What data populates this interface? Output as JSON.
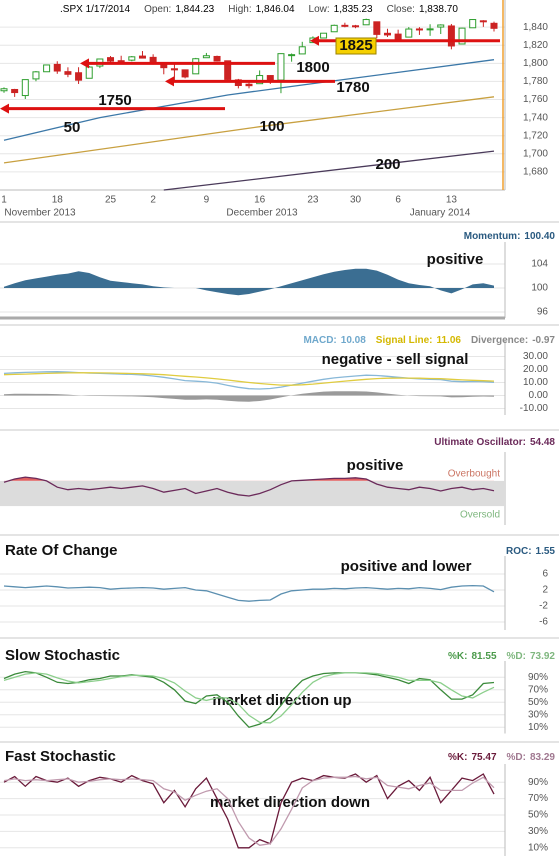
{
  "chart_data": [
    {
      "type": "candlestick",
      "title": ".SPX 1/17/2014",
      "readouts": [
        {
          "label": "Open:",
          "value": "1,844.23"
        },
        {
          "label": "High:",
          "value": "1,846.04"
        },
        {
          "label": "Low:",
          "value": "1,835.23"
        },
        {
          "label": "Close:",
          "value": "1,838.70"
        }
      ],
      "categories": [
        "1",
        null,
        null,
        null,
        null,
        "18",
        null,
        null,
        null,
        null,
        "25",
        null,
        null,
        null,
        "2",
        null,
        null,
        null,
        null,
        "9",
        null,
        null,
        null,
        null,
        "16",
        null,
        null,
        null,
        null,
        "23",
        null,
        null,
        null,
        "30",
        null,
        null,
        null,
        "6",
        null,
        null,
        null,
        null,
        "13",
        null,
        null,
        null,
        null
      ],
      "months": [
        "November 2013",
        "December 2013",
        "January 2014"
      ],
      "open": [
        1769.7,
        1771.1,
        1764.4,
        1782.8,
        1790.7,
        1798.8,
        1790.8,
        1789.6,
        1783.5,
        1797.0,
        1806.3,
        1802.9,
        1803.5,
        1808.0,
        1806.6,
        1800.1,
        1794.0,
        1792.8,
        1788.4,
        1806.2,
        1807.6,
        1802.8,
        1781.7,
        1776.9,
        1777.5,
        1786.5,
        1781.5,
        1809.0,
        1810.4,
        1822.9,
        1828.0,
        1834.9,
        1842.0,
        1841.5,
        1842.6,
        1845.9,
        1833.2,
        1832.3,
        1829.0,
        1838.0,
        1837.9,
        1840.1,
        1841.3,
        1821.4,
        1839.3,
        1847.0,
        1844.23
      ],
      "high": [
        1773.4,
        1771.8,
        1782.0,
        1791.5,
        1798.2,
        1802.3,
        1795.6,
        1795.7,
        1797.2,
        1804.8,
        1808.1,
        1808.4,
        1808.1,
        1813.6,
        1810.0,
        1800.1,
        1799.8,
        1792.8,
        1806.0,
        1811.5,
        1808.5,
        1803.0,
        1782.8,
        1781.3,
        1792.2,
        1786.8,
        1811.1,
        1810.9,
        1823.8,
        1829.8,
        1833.3,
        1842.8,
        1844.9,
        1842.5,
        1849.4,
        1845.9,
        1838.2,
        1837.2,
        1840.1,
        1840.0,
        1843.2,
        1843.2,
        1843.5,
        1839.3,
        1848.8,
        1847.7,
        1846.04
      ],
      "low": [
        1767.5,
        1762.9,
        1760.6,
        1780.2,
        1790.7,
        1788.4,
        1784.7,
        1777.2,
        1783.5,
        1794.7,
        1800.6,
        1800.8,
        1802.3,
        1805.8,
        1798.6,
        1787.9,
        1779.1,
        1783.4,
        1788.4,
        1806.2,
        1801.9,
        1780.1,
        1772.3,
        1772.3,
        1777.5,
        1777.2,
        1767.0,
        1801.8,
        1810.4,
        1822.9,
        1828.0,
        1834.9,
        1839.8,
        1838.8,
        1842.4,
        1827.7,
        1829.1,
        1823.7,
        1829.0,
        1831.4,
        1830.4,
        1832.4,
        1815.5,
        1821.4,
        1839.3,
        1840.3,
        1835.23
      ],
      "close": [
        1771.9,
        1767.7,
        1782.0,
        1790.6,
        1798.2,
        1791.5,
        1787.9,
        1781.4,
        1795.9,
        1804.8,
        1802.5,
        1802.8,
        1807.2,
        1805.8,
        1800.9,
        1795.2,
        1792.8,
        1785.0,
        1805.1,
        1808.4,
        1802.6,
        1782.2,
        1775.5,
        1775.3,
        1786.5,
        1781.0,
        1810.7,
        1809.6,
        1818.3,
        1828.0,
        1833.3,
        1842.0,
        1841.4,
        1841.1,
        1848.4,
        1832.0,
        1831.4,
        1826.8,
        1837.9,
        1837.5,
        1838.1,
        1842.4,
        1819.2,
        1838.9,
        1848.4,
        1845.9,
        1838.7
      ],
      "up_color": "#2e9e2e",
      "down_color": "#cc2222",
      "moving_averages": [
        {
          "name": "50",
          "color": "#3c78a8",
          "x": [
            0,
            9,
            21,
            28,
            46
          ],
          "values": [
            1715,
            1740,
            1765,
            1776,
            1804
          ]
        },
        {
          "name": "100",
          "color": "#c8a040",
          "x": [
            0,
            24,
            46
          ],
          "values": [
            1690,
            1730,
            1763
          ]
        },
        {
          "name": "200",
          "color": "#4a3a5a",
          "x": [
            15,
            46
          ],
          "values": [
            1660,
            1703
          ]
        }
      ],
      "levels": [
        1825,
        1800,
        1780,
        1750
      ],
      "level_color": "#dd1111",
      "ylim": [
        1660,
        1870
      ],
      "yticks": [
        {
          "value": 1680,
          "label": "1,680"
        },
        {
          "value": 1700,
          "label": "1,700"
        },
        {
          "value": 1720,
          "label": "1,720"
        },
        {
          "value": 1740,
          "label": "1,740"
        },
        {
          "value": 1760,
          "label": "1,760"
        },
        {
          "value": 1780,
          "label": "1,780"
        },
        {
          "value": 1800,
          "label": "1,800"
        },
        {
          "value": 1820,
          "label": "1,820"
        },
        {
          "value": 1840,
          "label": "1,840"
        }
      ],
      "grid": true
    },
    {
      "type": "area",
      "readouts": [
        {
          "label": "Momentum:",
          "value": "100.40",
          "color": "#2a5a80"
        }
      ],
      "annotation": "positive",
      "baseline": 100,
      "ylim": [
        95,
        106
      ],
      "yticks": [
        104,
        100,
        96
      ],
      "grid": true,
      "series": [
        {
          "color": "#3b6e92",
          "values": [
            100.2,
            100.8,
            101.3,
            101.6,
            101.9,
            102.2,
            102.4,
            102.8,
            102.5,
            101.8,
            101.2,
            101.0,
            100.8,
            100.6,
            100.3,
            100.1,
            100.0,
            100.0,
            100.0,
            99.6,
            99.3,
            99.0,
            98.8,
            99.0,
            99.4,
            99.8,
            100.3,
            100.8,
            101.3,
            101.8,
            102.3,
            102.7,
            103.0,
            103.2,
            103.2,
            102.9,
            102.2,
            101.4,
            100.8,
            100.5,
            100.3,
            99.6,
            99.1,
            99.8,
            100.6,
            100.8,
            100.4
          ]
        }
      ]
    },
    {
      "type": "line",
      "readouts": [
        {
          "label": "MACD:",
          "value": "10.08",
          "color": "#6fa8cc"
        },
        {
          "label": "Signal Line:",
          "value": "11.06",
          "color": "#d4b800"
        },
        {
          "label": "Divergence:",
          "value": "-0.97",
          "color": "#888888"
        }
      ],
      "annotation": "negative - sell signal",
      "baseline": 0,
      "ylim": [
        -15,
        35
      ],
      "yticks": [
        {
          "value": 30,
          "label": "30.00"
        },
        {
          "value": 20,
          "label": "20.00"
        },
        {
          "value": 10,
          "label": "10.00"
        },
        {
          "value": 0,
          "label": "0.00"
        },
        {
          "value": -10,
          "label": "-10.00"
        }
      ],
      "grid": true,
      "series": [
        {
          "color": "#9a9a9a",
          "style": "area",
          "values": [
            1,
            1.3,
            1.3,
            1.2,
            1.2,
            1.1,
            0.7,
            0.1,
            -0.3,
            -0.4,
            -0.5,
            -0.6,
            -0.7,
            -0.9,
            -1.4,
            -2,
            -2.6,
            -3.3,
            -3.2,
            -3,
            -3.3,
            -4.1,
            -4.6,
            -4.8,
            -4.2,
            -3.1,
            -1.5,
            0.1,
            1.3,
            2.2,
            3,
            3.2,
            3.2,
            3.2,
            3.1,
            2.4,
            1.5,
            0.6,
            -0.1,
            -0.5,
            -0.6,
            -0.7,
            -1.5,
            -1.4,
            -0.9,
            -0.8,
            -0.97
          ]
        },
        {
          "color": "#88b8d8",
          "values": [
            17,
            17.5,
            17.8,
            18,
            18.2,
            18.3,
            18.1,
            17.6,
            17.2,
            17,
            16.8,
            16.5,
            16.2,
            15.8,
            15,
            14,
            12.8,
            11.5,
            11,
            10.5,
            9.5,
            7.8,
            6.3,
            5.2,
            5,
            5.4,
            6.5,
            8,
            9.5,
            11,
            12.5,
            13.5,
            14.3,
            15,
            15.6,
            15.4,
            14.8,
            14,
            13.3,
            12.8,
            12.5,
            12.2,
            11,
            10.6,
            10.8,
            10.6,
            10.08
          ]
        },
        {
          "color": "#e0cc40",
          "values": [
            16,
            16.2,
            16.5,
            16.8,
            17,
            17.2,
            17.4,
            17.5,
            17.5,
            17.4,
            17.3,
            17.1,
            16.9,
            16.7,
            16.4,
            16,
            15.4,
            14.8,
            14.2,
            13.5,
            12.8,
            11.9,
            10.9,
            10,
            9.2,
            8.5,
            8,
            7.9,
            8.2,
            8.8,
            9.5,
            10.3,
            11.1,
            11.8,
            12.5,
            13,
            13.3,
            13.4,
            13.4,
            13.3,
            13.1,
            12.9,
            12.5,
            12,
            11.7,
            11.4,
            11.06
          ]
        }
      ]
    },
    {
      "type": "line",
      "readouts": [
        {
          "label": "Ultimate Oscillator:",
          "value": "54.48",
          "color": "#6b2a5a"
        }
      ],
      "annotation": "positive",
      "ylim": [
        0,
        100
      ],
      "band": {
        "low": 30,
        "high": 70,
        "low_label": "Oversold",
        "high_label": "Overbought",
        "color": "#dcdcdc",
        "high_fill": "#e06060",
        "low_label_color": "#7fb77f",
        "high_label_color": "#cc7766"
      },
      "series": [
        {
          "color": "#6b2a5a",
          "values": [
            68,
            73,
            76,
            74,
            70,
            60,
            56,
            58,
            56,
            58,
            60,
            58,
            60,
            62,
            58,
            52,
            55,
            58,
            50,
            54,
            58,
            52,
            48,
            46,
            50,
            56,
            64,
            70,
            71,
            72,
            73,
            74,
            74,
            75,
            73,
            65,
            60,
            58,
            56,
            60,
            58,
            54,
            58,
            60,
            56,
            58,
            54.48
          ]
        }
      ]
    },
    {
      "type": "line",
      "title": "Rate Of Change",
      "readouts": [
        {
          "label": "ROC:",
          "value": "1.55",
          "color": "#2a5a80"
        }
      ],
      "annotation": "positive and lower",
      "ylim": [
        -8,
        8
      ],
      "yticks": [
        6,
        2,
        -2,
        -6
      ],
      "grid": true,
      "series": [
        {
          "color": "#5b8fb0",
          "values": [
            3,
            2.8,
            2.6,
            2.8,
            3,
            2.8,
            2.5,
            2.6,
            2.7,
            2.6,
            2.2,
            2.4,
            2.5,
            2.6,
            2.5,
            2.2,
            2.4,
            2.6,
            2,
            1.8,
            1,
            0.2,
            -0.6,
            -0.8,
            -0.6,
            -0.5,
            1,
            1.8,
            2,
            2.2,
            2.2,
            2.4,
            2.3,
            2.5,
            2.6,
            2.4,
            2.2,
            2.4,
            2.3,
            2.6,
            2.4,
            2.1,
            2.7,
            3,
            3.1,
            3,
            1.55
          ]
        }
      ]
    },
    {
      "type": "line",
      "title": "Slow Stochastic",
      "readouts": [
        {
          "label": "%K:",
          "value": "81.55",
          "color": "#4a9a4a"
        },
        {
          "label": "%D:",
          "value": "73.92",
          "color": "#7fb77f"
        }
      ],
      "annotation": "market direction up",
      "ylim": [
        0,
        100
      ],
      "yticks": [
        {
          "value": 90,
          "label": "90%"
        },
        {
          "value": 70,
          "label": "70%"
        },
        {
          "value": 50,
          "label": "50%"
        },
        {
          "value": 30,
          "label": "30%"
        },
        {
          "value": 10,
          "label": "10%"
        }
      ],
      "grid": true,
      "series": [
        {
          "color": "#3a8a3a",
          "values": [
            88,
            95,
            99,
            97,
            90,
            82,
            80,
            82,
            86,
            88,
            92,
            92,
            94,
            92,
            90,
            82,
            70,
            52,
            48,
            60,
            62,
            50,
            28,
            10,
            15,
            25,
            45,
            68,
            85,
            92,
            96,
            97,
            97,
            97,
            96,
            94,
            90,
            86,
            80,
            88,
            86,
            70,
            55,
            55,
            62,
            80,
            81.55
          ]
        },
        {
          "color": "#8ccf8c",
          "values": [
            85,
            90,
            95,
            97,
            95,
            89,
            84,
            81,
            83,
            85,
            88,
            91,
            93,
            93,
            92,
            88,
            81,
            68,
            57,
            53,
            57,
            57,
            47,
            29,
            18,
            17,
            28,
            46,
            66,
            82,
            91,
            95,
            97,
            97,
            97,
            96,
            93,
            90,
            85,
            85,
            85,
            81,
            70,
            60,
            57,
            66,
            73.92
          ]
        }
      ]
    },
    {
      "type": "line",
      "title": "Fast Stochastic",
      "readouts": [
        {
          "label": "%K:",
          "value": "75.47",
          "color": "#6a1a3a"
        },
        {
          "label": "%D:",
          "value": "83.29",
          "color": "#a07890"
        }
      ],
      "annotation": "market direction down",
      "ylim": [
        0,
        100
      ],
      "yticks": [
        {
          "value": 90,
          "label": "90%"
        },
        {
          "value": 70,
          "label": "70%"
        },
        {
          "value": 50,
          "label": "50%"
        },
        {
          "value": 30,
          "label": "30%"
        },
        {
          "value": 10,
          "label": "10%"
        }
      ],
      "grid": true,
      "series": [
        {
          "color": "#6a1a3a",
          "values": [
            90,
            97,
            85,
            97,
            92,
            90,
            95,
            85,
            92,
            96,
            94,
            90,
            98,
            92,
            88,
            65,
            80,
            60,
            82,
            95,
            70,
            45,
            10,
            10,
            20,
            15,
            65,
            90,
            95,
            92,
            98,
            96,
            95,
            100,
            90,
            98,
            70,
            85,
            92,
            80,
            96,
            65,
            80,
            95,
            92,
            100,
            75.47
          ]
        },
        {
          "color": "#c09aae",
          "values": [
            92,
            94,
            92,
            93,
            92,
            93,
            94,
            90,
            91,
            93,
            94,
            93,
            94,
            93,
            92,
            82,
            78,
            68,
            74,
            79,
            82,
            70,
            42,
            22,
            13,
            15,
            33,
            57,
            83,
            92,
            95,
            96,
            96,
            97,
            94,
            96,
            86,
            84,
            82,
            86,
            89,
            80,
            80,
            80,
            89,
            96,
            83.29
          ]
        }
      ]
    }
  ]
}
